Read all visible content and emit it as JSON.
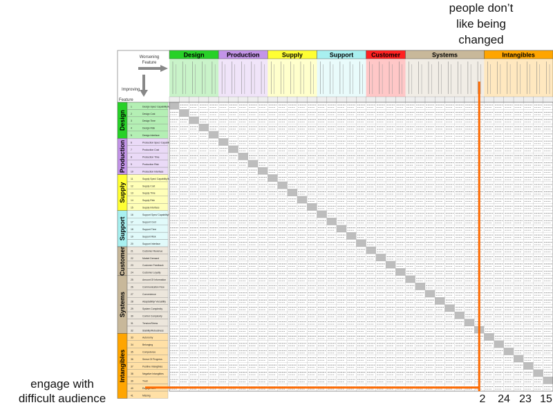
{
  "annotation_top": [
    "people don’t",
    "like being",
    "changed"
  ],
  "annotation_bottom": [
    "engage with",
    "difficult audience"
  ],
  "header": {
    "worsening_label": "Worsening Feature",
    "improving_label": "Improving Feature"
  },
  "column_groups": [
    {
      "name": "Design",
      "color": "#27d127",
      "cols": 5
    },
    {
      "name": "Production",
      "color": "#c394e8",
      "cols": 5
    },
    {
      "name": "Supply",
      "color": "#ffff33",
      "cols": 5
    },
    {
      "name": "Support",
      "color": "#a8f0f0",
      "cols": 5
    },
    {
      "name": "Customer",
      "color": "#ff2020",
      "cols": 4
    },
    {
      "name": "Systems",
      "color": "#c8b89a",
      "cols": 8
    },
    {
      "name": "Intangibles",
      "color": "#ffa500",
      "cols": 7
    }
  ],
  "row_groups": [
    {
      "name": "Design",
      "color": "#27d127",
      "rows": [
        "Design Spec/ Capability/Means",
        "Design Cost",
        "Design Time",
        "Design Risk",
        "Design Interface"
      ]
    },
    {
      "name": "Production",
      "color": "#c394e8",
      "rows": [
        "Production Spec/ Capability/Means",
        "Production Cost",
        "Production Time",
        "Production Risk",
        "Production Interface"
      ]
    },
    {
      "name": "Supply",
      "color": "#ffff33",
      "rows": [
        "Supply Spec/ Capability/Means",
        "Supply Cost",
        "Supply Time",
        "Supply Risk",
        "Supply Interface"
      ]
    },
    {
      "name": "Support",
      "color": "#a8f0f0",
      "rows": [
        "Support Spec/ Capability/Means",
        "Support Cost",
        "Support Time",
        "Support Risk",
        "Support Interface"
      ]
    },
    {
      "name": "Customer",
      "color": "#c8b89a",
      "rows": [
        "Customer Revenue",
        "Market Demand",
        "Customer Feedback",
        "Customer Loyalty"
      ]
    },
    {
      "name": "Systems",
      "color": "#c8b89a",
      "rows": [
        "Amount Of Information",
        "Communication Flow",
        "Convenience",
        "Adaptability/ Versatility",
        "System Complexity",
        "Control Complexity",
        "Tension/Stress",
        "Stability/Robustness"
      ]
    },
    {
      "name": "Intangibles",
      "color": "#ffa500",
      "rows": [
        "Autonomy",
        "Belonging",
        "Competence",
        "Sense Of Progress",
        "Positive Intangibles",
        "Negative Intangibles",
        "Trust",
        "Engagement",
        "Missing"
      ]
    }
  ],
  "highlight": {
    "column_number": "32",
    "row_number": "40",
    "cell_values": [
      "2",
      "24",
      "23",
      "15"
    ],
    "line_color": "#ff6a00"
  }
}
